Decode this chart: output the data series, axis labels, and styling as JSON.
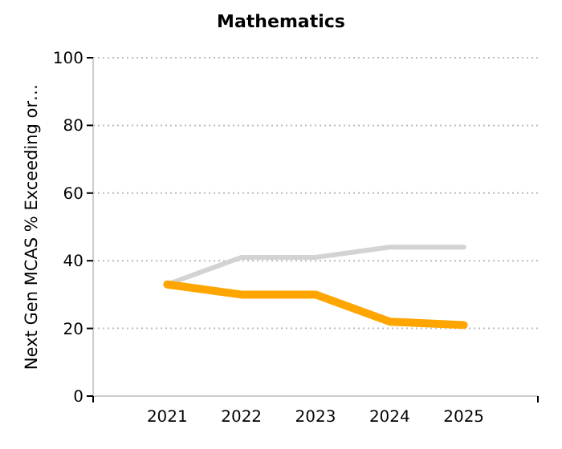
{
  "chart_data": {
    "type": "line",
    "title": "Mathematics",
    "ylabel": "Next Gen MCAS % Exceeding or…",
    "categories": [
      "2021",
      "2022",
      "2023",
      "2024",
      "2025"
    ],
    "series": [
      {
        "color": "#d3d3d3",
        "values": [
          33,
          41,
          41,
          44,
          44
        ]
      },
      {
        "color": "#ffa500",
        "values": [
          33,
          30,
          30,
          22,
          21
        ]
      }
    ],
    "ylim": [
      0,
      100
    ],
    "yticks": [
      0,
      20,
      40,
      60,
      80,
      100
    ],
    "grid": "y",
    "marker": "none",
    "line_style": "solid"
  }
}
